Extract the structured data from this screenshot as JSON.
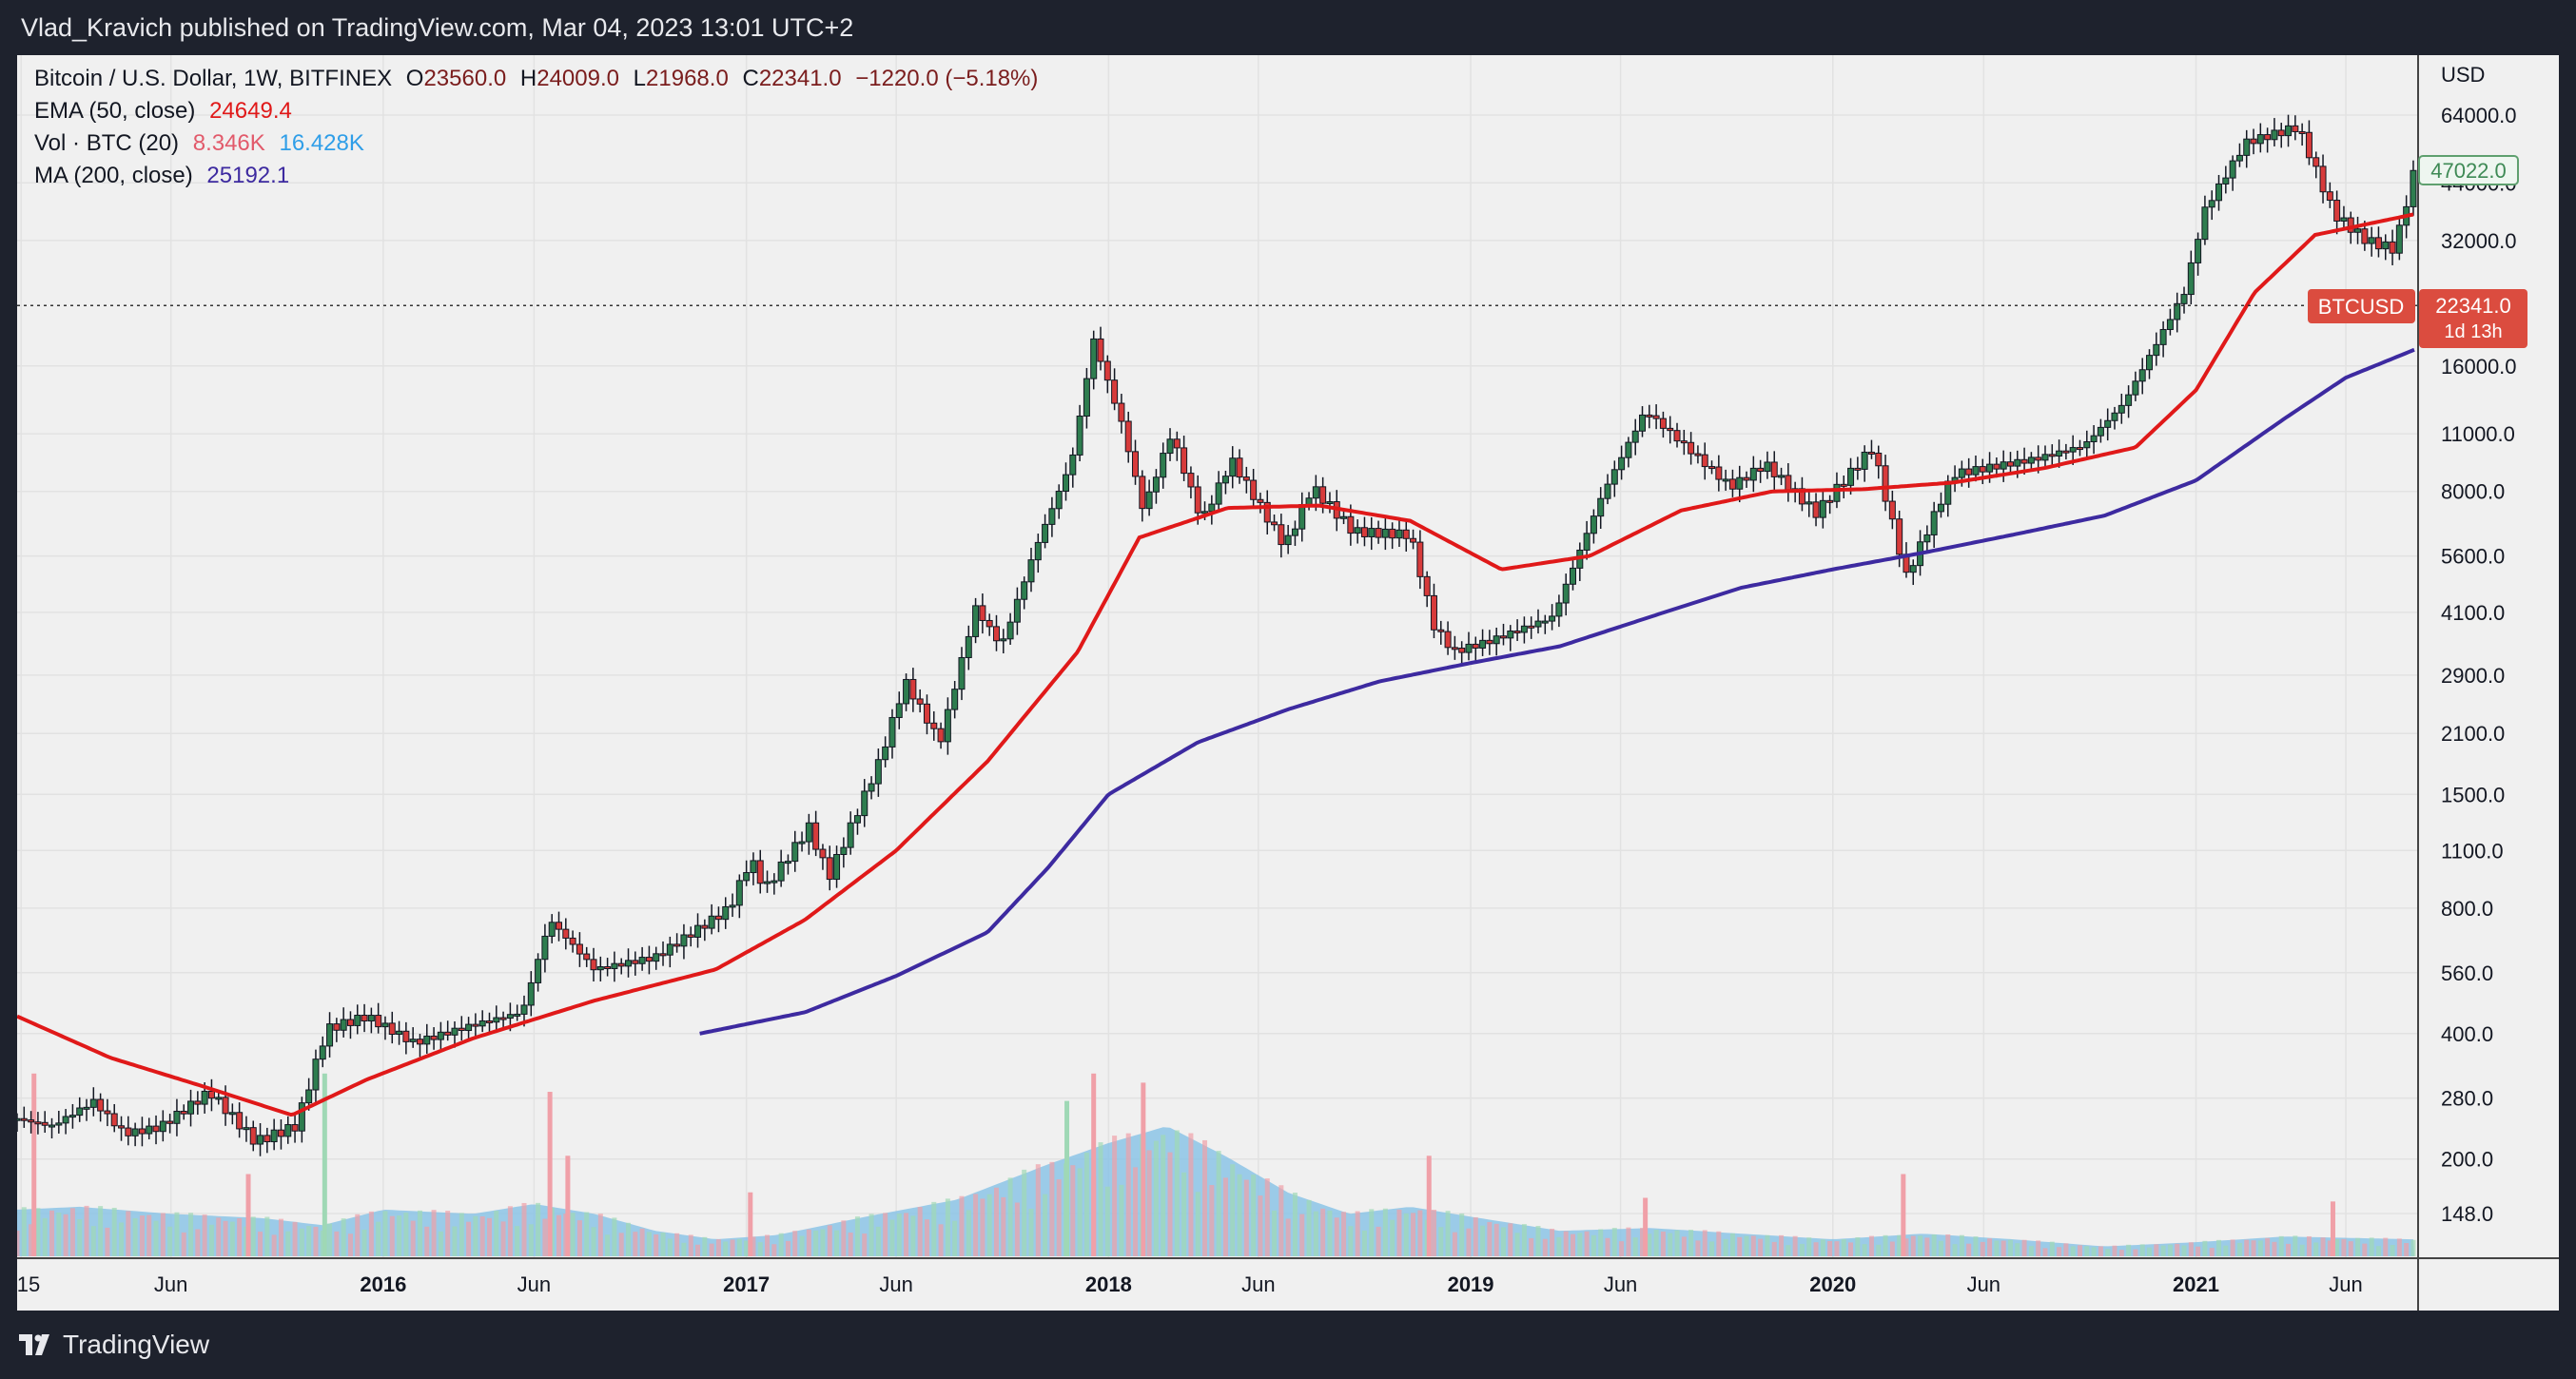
{
  "header": {
    "publisher": "Vlad_Kravich published on TradingView.com, Mar 04, 2023 13:01 UTC+2"
  },
  "legend": {
    "symbol": "Bitcoin / U.S. Dollar, 1W, BITFINEX",
    "o_label": "O",
    "o": "23560.0",
    "h_label": "H",
    "h": "24009.0",
    "l_label": "L",
    "l": "21968.0",
    "c_label": "C",
    "c": "22341.0",
    "change": "−1220.0 (−5.18%)",
    "ema_label": "EMA (50, close)",
    "ema_value": "24649.4",
    "vol_label": "Vol · BTC (20)",
    "vol_value1": "8.346K",
    "vol_value2": "16.428K",
    "ma_label": "MA (200, close)",
    "ma_value": "25192.1"
  },
  "price_badges": {
    "last_price": "47022.0",
    "symbol_tag": "BTCUSD",
    "current": "22341.0",
    "countdown": "1d 13h"
  },
  "branding": {
    "logo_text": "TradingView"
  },
  "colors": {
    "up": "#2e7d4f",
    "down": "#d73b3b",
    "ema": "#e01919",
    "ma": "#3d2aa0",
    "vol_fill": "#7fbfe6",
    "vol_up": "#9fd8b5",
    "vol_down": "#f0a0a8"
  },
  "chart_data": {
    "type": "candlestick",
    "scale": "log",
    "currency": "USD",
    "y_ticks": [
      64000,
      44000,
      32000,
      16000,
      11000,
      8000,
      5600,
      4100,
      2900,
      2100,
      1500,
      1100,
      800,
      560,
      400,
      280,
      200,
      148
    ],
    "y_tick_labels": [
      "64000.0",
      "44000.0",
      "32000.0",
      "16000.0",
      "11000.0",
      "8000.0",
      "5600.0",
      "4100.0",
      "2900.0",
      "2100.0",
      "1500.0",
      "1100.0",
      "800.0",
      "560.0",
      "400.0",
      "280.0",
      "200.0",
      "148.0"
    ],
    "x_ticks": [
      {
        "label": "15",
        "date": "2015-01-01"
      },
      {
        "label": "Jun",
        "date": "2015-06-01"
      },
      {
        "label": "2016",
        "date": "2016-01-01"
      },
      {
        "label": "Jun",
        "date": "2016-06-01"
      },
      {
        "label": "2017",
        "date": "2017-01-01"
      },
      {
        "label": "Jun",
        "date": "2017-06-01"
      },
      {
        "label": "2018",
        "date": "2018-01-01"
      },
      {
        "label": "Jun",
        "date": "2018-06-01"
      },
      {
        "label": "2019",
        "date": "2019-01-01"
      },
      {
        "label": "Jun",
        "date": "2019-06-01"
      },
      {
        "label": "2020",
        "date": "2020-01-01"
      },
      {
        "label": "Jun",
        "date": "2020-06-01"
      },
      {
        "label": "2021",
        "date": "2021-01-01"
      },
      {
        "label": "Jun",
        "date": "2021-06-01"
      }
    ],
    "x_range": [
      "2014-12-28",
      "2021-08-09"
    ],
    "current_price": 22341,
    "price_path": [
      [
        "2014-12-28",
        250
      ],
      [
        "2015-02-01",
        240
      ],
      [
        "2015-03-15",
        275
      ],
      [
        "2015-04-15",
        230
      ],
      [
        "2015-05-20",
        238
      ],
      [
        "2015-07-10",
        290
      ],
      [
        "2015-08-25",
        220
      ],
      [
        "2015-10-05",
        240
      ],
      [
        "2015-11-05",
        410
      ],
      [
        "2015-12-15",
        440
      ],
      [
        "2016-02-01",
        380
      ],
      [
        "2016-04-01",
        420
      ],
      [
        "2016-05-20",
        450
      ],
      [
        "2016-06-17",
        750
      ],
      [
        "2016-08-01",
        570
      ],
      [
        "2016-10-01",
        610
      ],
      [
        "2016-12-15",
        800
      ],
      [
        "2017-01-05",
        1050
      ],
      [
        "2017-01-20",
        890
      ],
      [
        "2017-03-05",
        1250
      ],
      [
        "2017-03-25",
        950
      ],
      [
        "2017-05-15",
        1800
      ],
      [
        "2017-06-10",
        2800
      ],
      [
        "2017-07-15",
        2000
      ],
      [
        "2017-08-20",
        4200
      ],
      [
        "2017-09-15",
        3400
      ],
      [
        "2017-10-20",
        5900
      ],
      [
        "2017-11-25",
        9500
      ],
      [
        "2017-12-17",
        18500
      ],
      [
        "2018-01-15",
        11500
      ],
      [
        "2018-02-05",
        7200
      ],
      [
        "2018-03-05",
        11000
      ],
      [
        "2018-04-05",
        6800
      ],
      [
        "2018-05-05",
        9500
      ],
      [
        "2018-06-28",
        5900
      ],
      [
        "2018-07-25",
        8200
      ],
      [
        "2018-09-05",
        6400
      ],
      [
        "2018-11-01",
        6300
      ],
      [
        "2018-11-25",
        3800
      ],
      [
        "2018-12-15",
        3300
      ],
      [
        "2019-01-20",
        3500
      ],
      [
        "2019-03-25",
        4000
      ],
      [
        "2019-05-15",
        8000
      ],
      [
        "2019-06-26",
        12500
      ],
      [
        "2019-08-01",
        10500
      ],
      [
        "2019-09-20",
        8200
      ],
      [
        "2019-10-25",
        9300
      ],
      [
        "2019-12-15",
        7100
      ],
      [
        "2020-02-10",
        10200
      ],
      [
        "2020-03-15",
        5000
      ],
      [
        "2020-05-01",
        8800
      ],
      [
        "2020-07-25",
        9600
      ],
      [
        "2020-09-10",
        10300
      ],
      [
        "2020-10-20",
        13000
      ],
      [
        "2020-12-20",
        24000
      ],
      [
        "2021-01-10",
        38000
      ],
      [
        "2021-02-20",
        55000
      ],
      [
        "2021-04-14",
        60000
      ],
      [
        "2021-05-20",
        37000
      ],
      [
        "2021-06-22",
        32000
      ],
      [
        "2021-07-20",
        30500
      ],
      [
        "2021-08-09",
        47000
      ]
    ],
    "ema50_path": [
      [
        "2014-12-28",
        440
      ],
      [
        "2015-04-01",
        350
      ],
      [
        "2015-07-01",
        300
      ],
      [
        "2015-10-01",
        255
      ],
      [
        "2015-12-15",
        310
      ],
      [
        "2016-04-01",
        390
      ],
      [
        "2016-08-01",
        480
      ],
      [
        "2016-12-01",
        570
      ],
      [
        "2017-03-01",
        750
      ],
      [
        "2017-06-01",
        1100
      ],
      [
        "2017-09-01",
        1800
      ],
      [
        "2017-12-01",
        3300
      ],
      [
        "2018-02-01",
        6200
      ],
      [
        "2018-05-01",
        7300
      ],
      [
        "2018-08-01",
        7400
      ],
      [
        "2018-11-01",
        6800
      ],
      [
        "2019-02-01",
        5200
      ],
      [
        "2019-05-01",
        5600
      ],
      [
        "2019-08-01",
        7200
      ],
      [
        "2019-11-01",
        8000
      ],
      [
        "2020-02-01",
        8100
      ],
      [
        "2020-05-01",
        8400
      ],
      [
        "2020-08-01",
        9100
      ],
      [
        "2020-11-01",
        10200
      ],
      [
        "2021-01-01",
        14000
      ],
      [
        "2021-03-01",
        24000
      ],
      [
        "2021-05-01",
        33000
      ],
      [
        "2021-08-09",
        37000
      ]
    ],
    "ma200_path": [
      [
        "2016-11-15",
        400
      ],
      [
        "2017-03-01",
        450
      ],
      [
        "2017-06-01",
        550
      ],
      [
        "2017-09-01",
        700
      ],
      [
        "2017-11-01",
        1000
      ],
      [
        "2018-01-01",
        1500
      ],
      [
        "2018-04-01",
        2000
      ],
      [
        "2018-07-01",
        2400
      ],
      [
        "2018-10-01",
        2800
      ],
      [
        "2019-01-01",
        3100
      ],
      [
        "2019-04-01",
        3400
      ],
      [
        "2019-07-01",
        4000
      ],
      [
        "2019-10-01",
        4700
      ],
      [
        "2020-01-01",
        5200
      ],
      [
        "2020-04-01",
        5700
      ],
      [
        "2020-07-01",
        6300
      ],
      [
        "2020-10-01",
        7000
      ],
      [
        "2021-01-01",
        8500
      ],
      [
        "2021-04-01",
        12000
      ],
      [
        "2021-06-01",
        15000
      ],
      [
        "2021-08-09",
        17500
      ]
    ],
    "volume_avg_path": [
      [
        "2014-12-28",
        0.33
      ],
      [
        "2015-03-01",
        0.35
      ],
      [
        "2015-06-01",
        0.3
      ],
      [
        "2015-09-01",
        0.27
      ],
      [
        "2015-11-01",
        0.22
      ],
      [
        "2016-01-01",
        0.33
      ],
      [
        "2016-04-01",
        0.3
      ],
      [
        "2016-06-01",
        0.37
      ],
      [
        "2016-08-01",
        0.3
      ],
      [
        "2016-10-01",
        0.18
      ],
      [
        "2016-12-01",
        0.12
      ],
      [
        "2017-02-01",
        0.15
      ],
      [
        "2017-05-01",
        0.28
      ],
      [
        "2017-08-01",
        0.4
      ],
      [
        "2017-11-01",
        0.65
      ],
      [
        "2018-01-01",
        0.8
      ],
      [
        "2018-03-01",
        0.92
      ],
      [
        "2018-05-01",
        0.7
      ],
      [
        "2018-07-01",
        0.45
      ],
      [
        "2018-09-01",
        0.3
      ],
      [
        "2018-11-01",
        0.35
      ],
      [
        "2019-01-01",
        0.28
      ],
      [
        "2019-04-01",
        0.18
      ],
      [
        "2019-07-01",
        0.2
      ],
      [
        "2019-10-01",
        0.16
      ],
      [
        "2020-01-01",
        0.12
      ],
      [
        "2020-04-01",
        0.16
      ],
      [
        "2020-07-01",
        0.12
      ],
      [
        "2020-10-01",
        0.07
      ],
      [
        "2021-01-01",
        0.1
      ],
      [
        "2021-04-01",
        0.14
      ],
      [
        "2021-08-09",
        0.12
      ]
    ],
    "volume_spikes": [
      [
        "2015-01-14",
        1.0,
        "down"
      ],
      [
        "2015-08-18",
        0.45,
        "down"
      ],
      [
        "2015-11-03",
        1.0,
        "up"
      ],
      [
        "2016-06-17",
        0.9,
        "down"
      ],
      [
        "2016-07-05",
        0.55,
        "down"
      ],
      [
        "2017-01-05",
        0.35,
        "down"
      ],
      [
        "2017-11-20",
        0.85,
        "up"
      ],
      [
        "2017-12-17",
        1.0,
        "down"
      ],
      [
        "2018-02-05",
        0.95,
        "down"
      ],
      [
        "2018-11-20",
        0.55,
        "down"
      ],
      [
        "2019-06-26",
        0.32,
        "down"
      ],
      [
        "2020-03-12",
        0.45,
        "down"
      ],
      [
        "2021-05-19",
        0.3,
        "down"
      ]
    ]
  }
}
